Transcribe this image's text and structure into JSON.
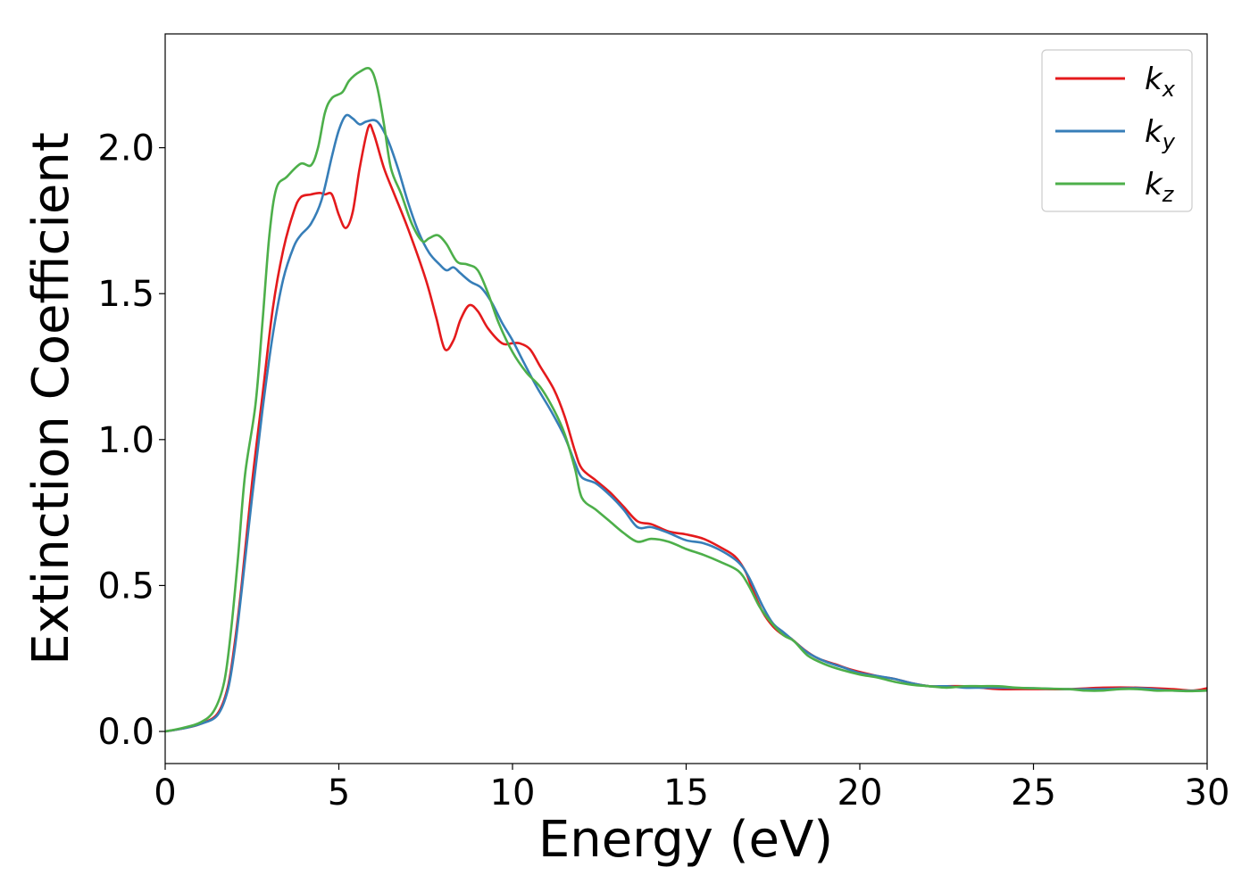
{
  "chart_data": {
    "type": "line",
    "title": "",
    "xlabel": "Energy (eV)",
    "ylabel": "Extinction Coefficient",
    "xlim": [
      0,
      30
    ],
    "ylim": [
      -0.11,
      2.39
    ],
    "xticks": [
      0,
      5,
      10,
      15,
      20,
      25,
      30
    ],
    "xtick_labels": [
      "0",
      "5",
      "10",
      "15",
      "20",
      "25",
      "30"
    ],
    "yticks": [
      0.0,
      0.5,
      1.0,
      1.5,
      2.0
    ],
    "ytick_labels": [
      "0.0",
      "0.5",
      "1.0",
      "1.5",
      "2.0"
    ],
    "grid": false,
    "legend_position": "top-right",
    "series": [
      {
        "name_main": "k",
        "name_sub": "x",
        "color": "#e41a1c",
        "points": [
          [
            0,
            0.0
          ],
          [
            0.5,
            0.01
          ],
          [
            1.0,
            0.025
          ],
          [
            1.5,
            0.06
          ],
          [
            1.8,
            0.15
          ],
          [
            2.0,
            0.3
          ],
          [
            2.2,
            0.5
          ],
          [
            2.5,
            0.85
          ],
          [
            2.8,
            1.15
          ],
          [
            3.1,
            1.45
          ],
          [
            3.4,
            1.65
          ],
          [
            3.7,
            1.78
          ],
          [
            3.9,
            1.83
          ],
          [
            4.2,
            1.84
          ],
          [
            4.45,
            1.845
          ],
          [
            4.6,
            1.84
          ],
          [
            4.8,
            1.84
          ],
          [
            5.0,
            1.77
          ],
          [
            5.2,
            1.725
          ],
          [
            5.4,
            1.78
          ],
          [
            5.6,
            1.93
          ],
          [
            5.85,
            2.07
          ],
          [
            6.0,
            2.05
          ],
          [
            6.3,
            1.93
          ],
          [
            6.6,
            1.84
          ],
          [
            7.0,
            1.72
          ],
          [
            7.5,
            1.55
          ],
          [
            7.8,
            1.42
          ],
          [
            8.05,
            1.31
          ],
          [
            8.3,
            1.34
          ],
          [
            8.5,
            1.41
          ],
          [
            8.75,
            1.46
          ],
          [
            9.0,
            1.44
          ],
          [
            9.3,
            1.38
          ],
          [
            9.7,
            1.33
          ],
          [
            10.0,
            1.33
          ],
          [
            10.2,
            1.33
          ],
          [
            10.5,
            1.31
          ],
          [
            10.8,
            1.25
          ],
          [
            11.2,
            1.17
          ],
          [
            11.5,
            1.08
          ],
          [
            11.8,
            0.96
          ],
          [
            12.0,
            0.9
          ],
          [
            12.4,
            0.86
          ],
          [
            12.8,
            0.82
          ],
          [
            13.2,
            0.77
          ],
          [
            13.6,
            0.72
          ],
          [
            14.0,
            0.71
          ],
          [
            14.5,
            0.685
          ],
          [
            15.0,
            0.675
          ],
          [
            15.5,
            0.66
          ],
          [
            16.0,
            0.63
          ],
          [
            16.4,
            0.6
          ],
          [
            16.7,
            0.55
          ],
          [
            16.9,
            0.49
          ],
          [
            17.2,
            0.41
          ],
          [
            17.5,
            0.36
          ],
          [
            17.8,
            0.33
          ],
          [
            18.0,
            0.32
          ],
          [
            18.4,
            0.28
          ],
          [
            18.8,
            0.25
          ],
          [
            19.3,
            0.23
          ],
          [
            19.8,
            0.21
          ],
          [
            20.5,
            0.19
          ],
          [
            21.0,
            0.18
          ],
          [
            21.5,
            0.165
          ],
          [
            22.0,
            0.155
          ],
          [
            22.5,
            0.155
          ],
          [
            23.0,
            0.155
          ],
          [
            23.5,
            0.15
          ],
          [
            24.0,
            0.145
          ],
          [
            25.0,
            0.145
          ],
          [
            26.0,
            0.145
          ],
          [
            27.0,
            0.15
          ],
          [
            28.0,
            0.15
          ],
          [
            29.0,
            0.145
          ],
          [
            29.6,
            0.14
          ],
          [
            30.0,
            0.148
          ]
        ]
      },
      {
        "name_main": "k",
        "name_sub": "y",
        "color": "#377eb8",
        "points": [
          [
            0,
            0.0
          ],
          [
            0.5,
            0.01
          ],
          [
            1.0,
            0.025
          ],
          [
            1.5,
            0.055
          ],
          [
            1.8,
            0.14
          ],
          [
            2.0,
            0.28
          ],
          [
            2.2,
            0.48
          ],
          [
            2.5,
            0.8
          ],
          [
            2.8,
            1.1
          ],
          [
            3.1,
            1.36
          ],
          [
            3.4,
            1.55
          ],
          [
            3.7,
            1.66
          ],
          [
            3.9,
            1.7
          ],
          [
            4.2,
            1.74
          ],
          [
            4.5,
            1.82
          ],
          [
            4.8,
            1.97
          ],
          [
            5.0,
            2.06
          ],
          [
            5.2,
            2.11
          ],
          [
            5.4,
            2.1
          ],
          [
            5.6,
            2.08
          ],
          [
            5.8,
            2.09
          ],
          [
            6.1,
            2.09
          ],
          [
            6.4,
            2.03
          ],
          [
            6.7,
            1.93
          ],
          [
            7.0,
            1.81
          ],
          [
            7.3,
            1.71
          ],
          [
            7.6,
            1.64
          ],
          [
            7.9,
            1.6
          ],
          [
            8.1,
            1.58
          ],
          [
            8.3,
            1.59
          ],
          [
            8.5,
            1.57
          ],
          [
            8.8,
            1.54
          ],
          [
            9.1,
            1.52
          ],
          [
            9.4,
            1.47
          ],
          [
            9.7,
            1.4
          ],
          [
            10.0,
            1.34
          ],
          [
            10.3,
            1.27
          ],
          [
            10.7,
            1.18
          ],
          [
            11.1,
            1.1
          ],
          [
            11.5,
            1.01
          ],
          [
            11.8,
            0.92
          ],
          [
            12.0,
            0.87
          ],
          [
            12.4,
            0.85
          ],
          [
            12.8,
            0.81
          ],
          [
            13.2,
            0.76
          ],
          [
            13.6,
            0.7
          ],
          [
            14.0,
            0.7
          ],
          [
            14.5,
            0.68
          ],
          [
            15.0,
            0.655
          ],
          [
            15.5,
            0.645
          ],
          [
            16.0,
            0.62
          ],
          [
            16.5,
            0.58
          ],
          [
            16.8,
            0.53
          ],
          [
            17.2,
            0.43
          ],
          [
            17.5,
            0.37
          ],
          [
            17.8,
            0.34
          ],
          [
            18.1,
            0.31
          ],
          [
            18.5,
            0.27
          ],
          [
            19.0,
            0.24
          ],
          [
            19.5,
            0.22
          ],
          [
            20.0,
            0.2
          ],
          [
            20.5,
            0.19
          ],
          [
            21.0,
            0.18
          ],
          [
            21.5,
            0.165
          ],
          [
            22.0,
            0.155
          ],
          [
            22.5,
            0.155
          ],
          [
            23.0,
            0.15
          ],
          [
            23.5,
            0.15
          ],
          [
            24.0,
            0.15
          ],
          [
            25.0,
            0.148
          ],
          [
            26.0,
            0.145
          ],
          [
            27.0,
            0.145
          ],
          [
            28.0,
            0.148
          ],
          [
            29.0,
            0.14
          ],
          [
            30.0,
            0.14
          ]
        ]
      },
      {
        "name_main": "k",
        "name_sub": "z",
        "color": "#4daf4a",
        "points": [
          [
            0,
            0.0
          ],
          [
            0.5,
            0.012
          ],
          [
            1.0,
            0.03
          ],
          [
            1.4,
            0.07
          ],
          [
            1.7,
            0.17
          ],
          [
            1.9,
            0.35
          ],
          [
            2.1,
            0.6
          ],
          [
            2.3,
            0.88
          ],
          [
            2.6,
            1.12
          ],
          [
            2.8,
            1.4
          ],
          [
            3.0,
            1.7
          ],
          [
            3.2,
            1.86
          ],
          [
            3.5,
            1.9
          ],
          [
            3.9,
            1.945
          ],
          [
            4.2,
            1.94
          ],
          [
            4.4,
            2.0
          ],
          [
            4.6,
            2.12
          ],
          [
            4.8,
            2.17
          ],
          [
            5.1,
            2.19
          ],
          [
            5.3,
            2.23
          ],
          [
            5.6,
            2.26
          ],
          [
            5.9,
            2.27
          ],
          [
            6.1,
            2.21
          ],
          [
            6.3,
            2.08
          ],
          [
            6.5,
            1.93
          ],
          [
            6.8,
            1.84
          ],
          [
            7.1,
            1.74
          ],
          [
            7.4,
            1.68
          ],
          [
            7.6,
            1.69
          ],
          [
            7.85,
            1.7
          ],
          [
            8.1,
            1.67
          ],
          [
            8.4,
            1.61
          ],
          [
            8.7,
            1.6
          ],
          [
            9.0,
            1.58
          ],
          [
            9.3,
            1.5
          ],
          [
            9.6,
            1.4
          ],
          [
            10.0,
            1.3
          ],
          [
            10.4,
            1.23
          ],
          [
            10.8,
            1.18
          ],
          [
            11.2,
            1.1
          ],
          [
            11.5,
            1.02
          ],
          [
            11.8,
            0.9
          ],
          [
            12.0,
            0.8
          ],
          [
            12.4,
            0.76
          ],
          [
            12.8,
            0.72
          ],
          [
            13.2,
            0.68
          ],
          [
            13.6,
            0.65
          ],
          [
            14.0,
            0.66
          ],
          [
            14.5,
            0.65
          ],
          [
            15.0,
            0.625
          ],
          [
            15.5,
            0.605
          ],
          [
            16.0,
            0.58
          ],
          [
            16.5,
            0.55
          ],
          [
            16.8,
            0.5
          ],
          [
            17.1,
            0.43
          ],
          [
            17.4,
            0.38
          ],
          [
            17.8,
            0.33
          ],
          [
            18.1,
            0.31
          ],
          [
            18.5,
            0.26
          ],
          [
            19.0,
            0.23
          ],
          [
            19.5,
            0.21
          ],
          [
            20.0,
            0.195
          ],
          [
            20.5,
            0.185
          ],
          [
            21.0,
            0.17
          ],
          [
            21.5,
            0.16
          ],
          [
            22.0,
            0.155
          ],
          [
            22.5,
            0.15
          ],
          [
            23.0,
            0.155
          ],
          [
            23.5,
            0.155
          ],
          [
            24.0,
            0.155
          ],
          [
            24.5,
            0.15
          ],
          [
            25.0,
            0.148
          ],
          [
            26.0,
            0.145
          ],
          [
            26.5,
            0.14
          ],
          [
            27.0,
            0.14
          ],
          [
            27.5,
            0.145
          ],
          [
            28.0,
            0.145
          ],
          [
            28.5,
            0.14
          ],
          [
            29.0,
            0.14
          ],
          [
            29.5,
            0.138
          ],
          [
            30.0,
            0.14
          ]
        ]
      }
    ]
  }
}
